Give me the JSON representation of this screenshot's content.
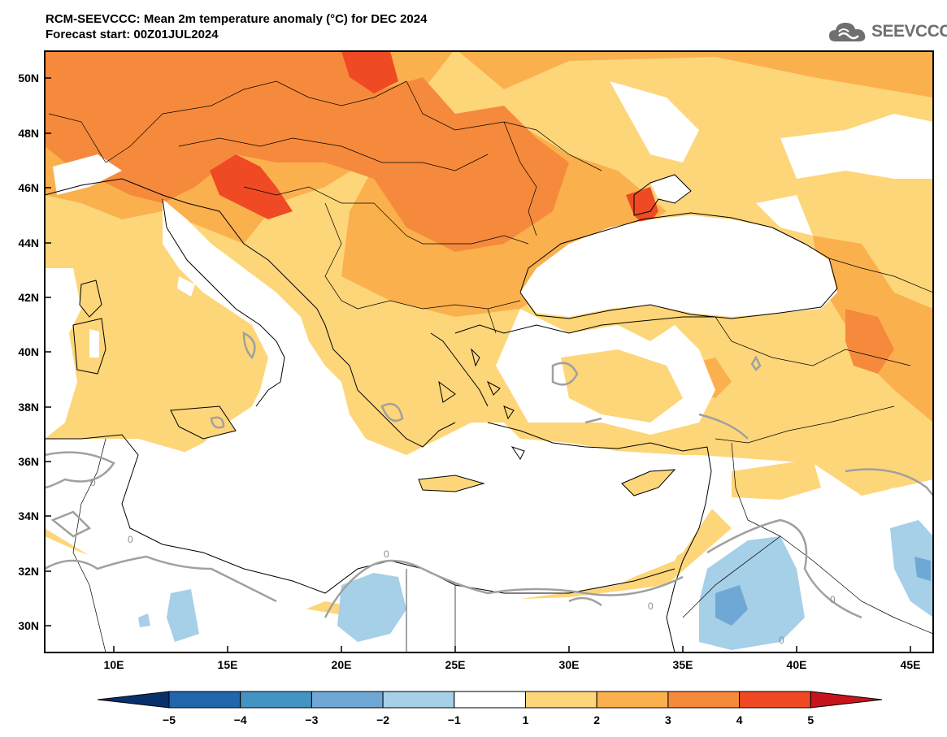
{
  "header": {
    "title_line1": "RCM-SEEVCCC: Mean 2m temperature anomaly (°C) for DEC 2024",
    "title_line2": "Forecast start: 00Z01JUL2024"
  },
  "logo": {
    "text": "SEEVCCC",
    "icon": "cloud-icon"
  },
  "map": {
    "lat_labels": [
      "50N",
      "48N",
      "46N",
      "44N",
      "42N",
      "40N",
      "38N",
      "36N",
      "34N",
      "32N",
      "30N"
    ],
    "lon_labels": [
      "10E",
      "15E",
      "20E",
      "25E",
      "30E",
      "35E",
      "40E",
      "45E"
    ],
    "contour_labels": [
      "0",
      "0",
      "0",
      "0",
      "0",
      "0"
    ]
  },
  "colorbar": {
    "labels": [
      "−5",
      "−4",
      "−3",
      "−2",
      "−1",
      "1",
      "2",
      "3",
      "4",
      "5"
    ],
    "colors": [
      "#08306b",
      "#2166ac",
      "#4393c3",
      "#6fa8d4",
      "#a6cfe8",
      "#ffffff",
      "#fdd67a",
      "#fbb04e",
      "#f68a3c",
      "#f04a24",
      "#c8141c"
    ]
  }
}
